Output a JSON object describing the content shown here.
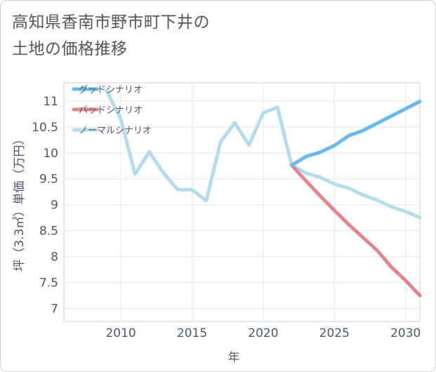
{
  "title_line1": "高知県香南市野市町下井の",
  "title_line2": "土地の価格推移",
  "chart_data": {
    "type": "line",
    "xlabel": "年",
    "ylabel": "坪（3.3㎡）単価（万円）",
    "xlim": [
      2006,
      2031
    ],
    "ylim": [
      6.75,
      11.35
    ],
    "x_ticks": [
      2010,
      2015,
      2020,
      2025,
      2030
    ],
    "y_ticks": [
      7,
      7.5,
      8,
      8.5,
      9,
      9.5,
      10,
      10.5,
      11
    ],
    "legend_position": "top-left",
    "series": [
      {
        "name": "グッドシナリオ",
        "color": "#6cb8ea",
        "x": [
          2022,
          2023,
          2024,
          2025,
          2026,
          2027,
          2028,
          2029,
          2030,
          2031
        ],
        "y": [
          9.76,
          9.93,
          10.01,
          10.14,
          10.33,
          10.43,
          10.57,
          10.71,
          10.85,
          10.99
        ]
      },
      {
        "name": "バッドシナリオ",
        "color": "#e0868e",
        "x": [
          2022,
          2023,
          2024,
          2025,
          2026,
          2027,
          2028,
          2029,
          2030,
          2031
        ],
        "y": [
          9.76,
          9.46,
          9.17,
          8.89,
          8.62,
          8.37,
          8.12,
          7.8,
          7.54,
          7.25
        ]
      },
      {
        "name": "ノーマルシナリオ",
        "color": "#b6dcec",
        "x": [
          2009,
          2010,
          2011,
          2012,
          2013,
          2014,
          2015,
          2016,
          2017,
          2018,
          2019,
          2020,
          2021,
          2022,
          2023,
          2024,
          2025,
          2026,
          2027,
          2028,
          2029,
          2030,
          2031
        ],
        "y": [
          11.2,
          10.65,
          9.59,
          10.02,
          9.61,
          9.29,
          9.29,
          9.08,
          10.21,
          10.58,
          10.15,
          10.77,
          10.88,
          9.76,
          9.61,
          9.53,
          9.4,
          9.32,
          9.19,
          9.09,
          8.96,
          8.87,
          8.75
        ]
      }
    ]
  }
}
